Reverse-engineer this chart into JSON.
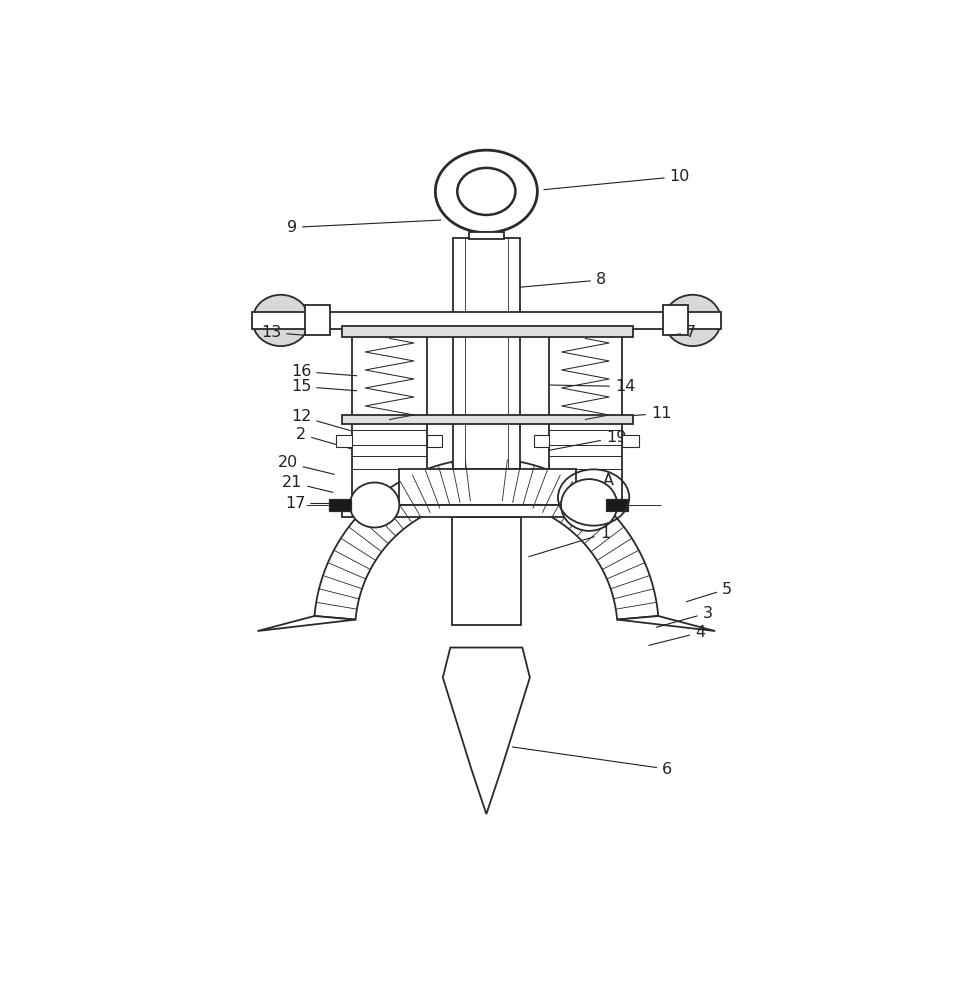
{
  "background_color": "#ffffff",
  "line_color": "#2a2a2a",
  "label_color": "#222222",
  "figsize": [
    9.68,
    10.0
  ],
  "dpi": 100,
  "labels_coords": {
    "10": [
      0.745,
      0.938,
      0.56,
      0.92
    ],
    "9": [
      0.228,
      0.87,
      0.43,
      0.88
    ],
    "8": [
      0.64,
      0.8,
      0.528,
      0.79
    ],
    "7": [
      0.76,
      0.73,
      0.73,
      0.726
    ],
    "13": [
      0.2,
      0.73,
      0.248,
      0.726
    ],
    "16": [
      0.24,
      0.678,
      0.318,
      0.672
    ],
    "15": [
      0.24,
      0.658,
      0.318,
      0.652
    ],
    "14": [
      0.672,
      0.658,
      0.568,
      0.66
    ],
    "11": [
      0.72,
      0.622,
      0.665,
      0.618
    ],
    "12": [
      0.24,
      0.618,
      0.31,
      0.598
    ],
    "2": [
      0.24,
      0.594,
      0.31,
      0.574
    ],
    "19": [
      0.66,
      0.59,
      0.566,
      0.572
    ],
    "20": [
      0.222,
      0.556,
      0.288,
      0.54
    ],
    "21": [
      0.228,
      0.53,
      0.286,
      0.516
    ],
    "17": [
      0.232,
      0.502,
      0.316,
      0.502
    ],
    "A": [
      0.65,
      0.532,
      0.605,
      0.516
    ],
    "1": [
      0.645,
      0.462,
      0.54,
      0.43
    ],
    "5": [
      0.808,
      0.388,
      0.75,
      0.37
    ],
    "3": [
      0.782,
      0.356,
      0.71,
      0.336
    ],
    "4": [
      0.772,
      0.33,
      0.7,
      0.312
    ],
    "6": [
      0.728,
      0.148,
      0.518,
      0.178
    ]
  }
}
